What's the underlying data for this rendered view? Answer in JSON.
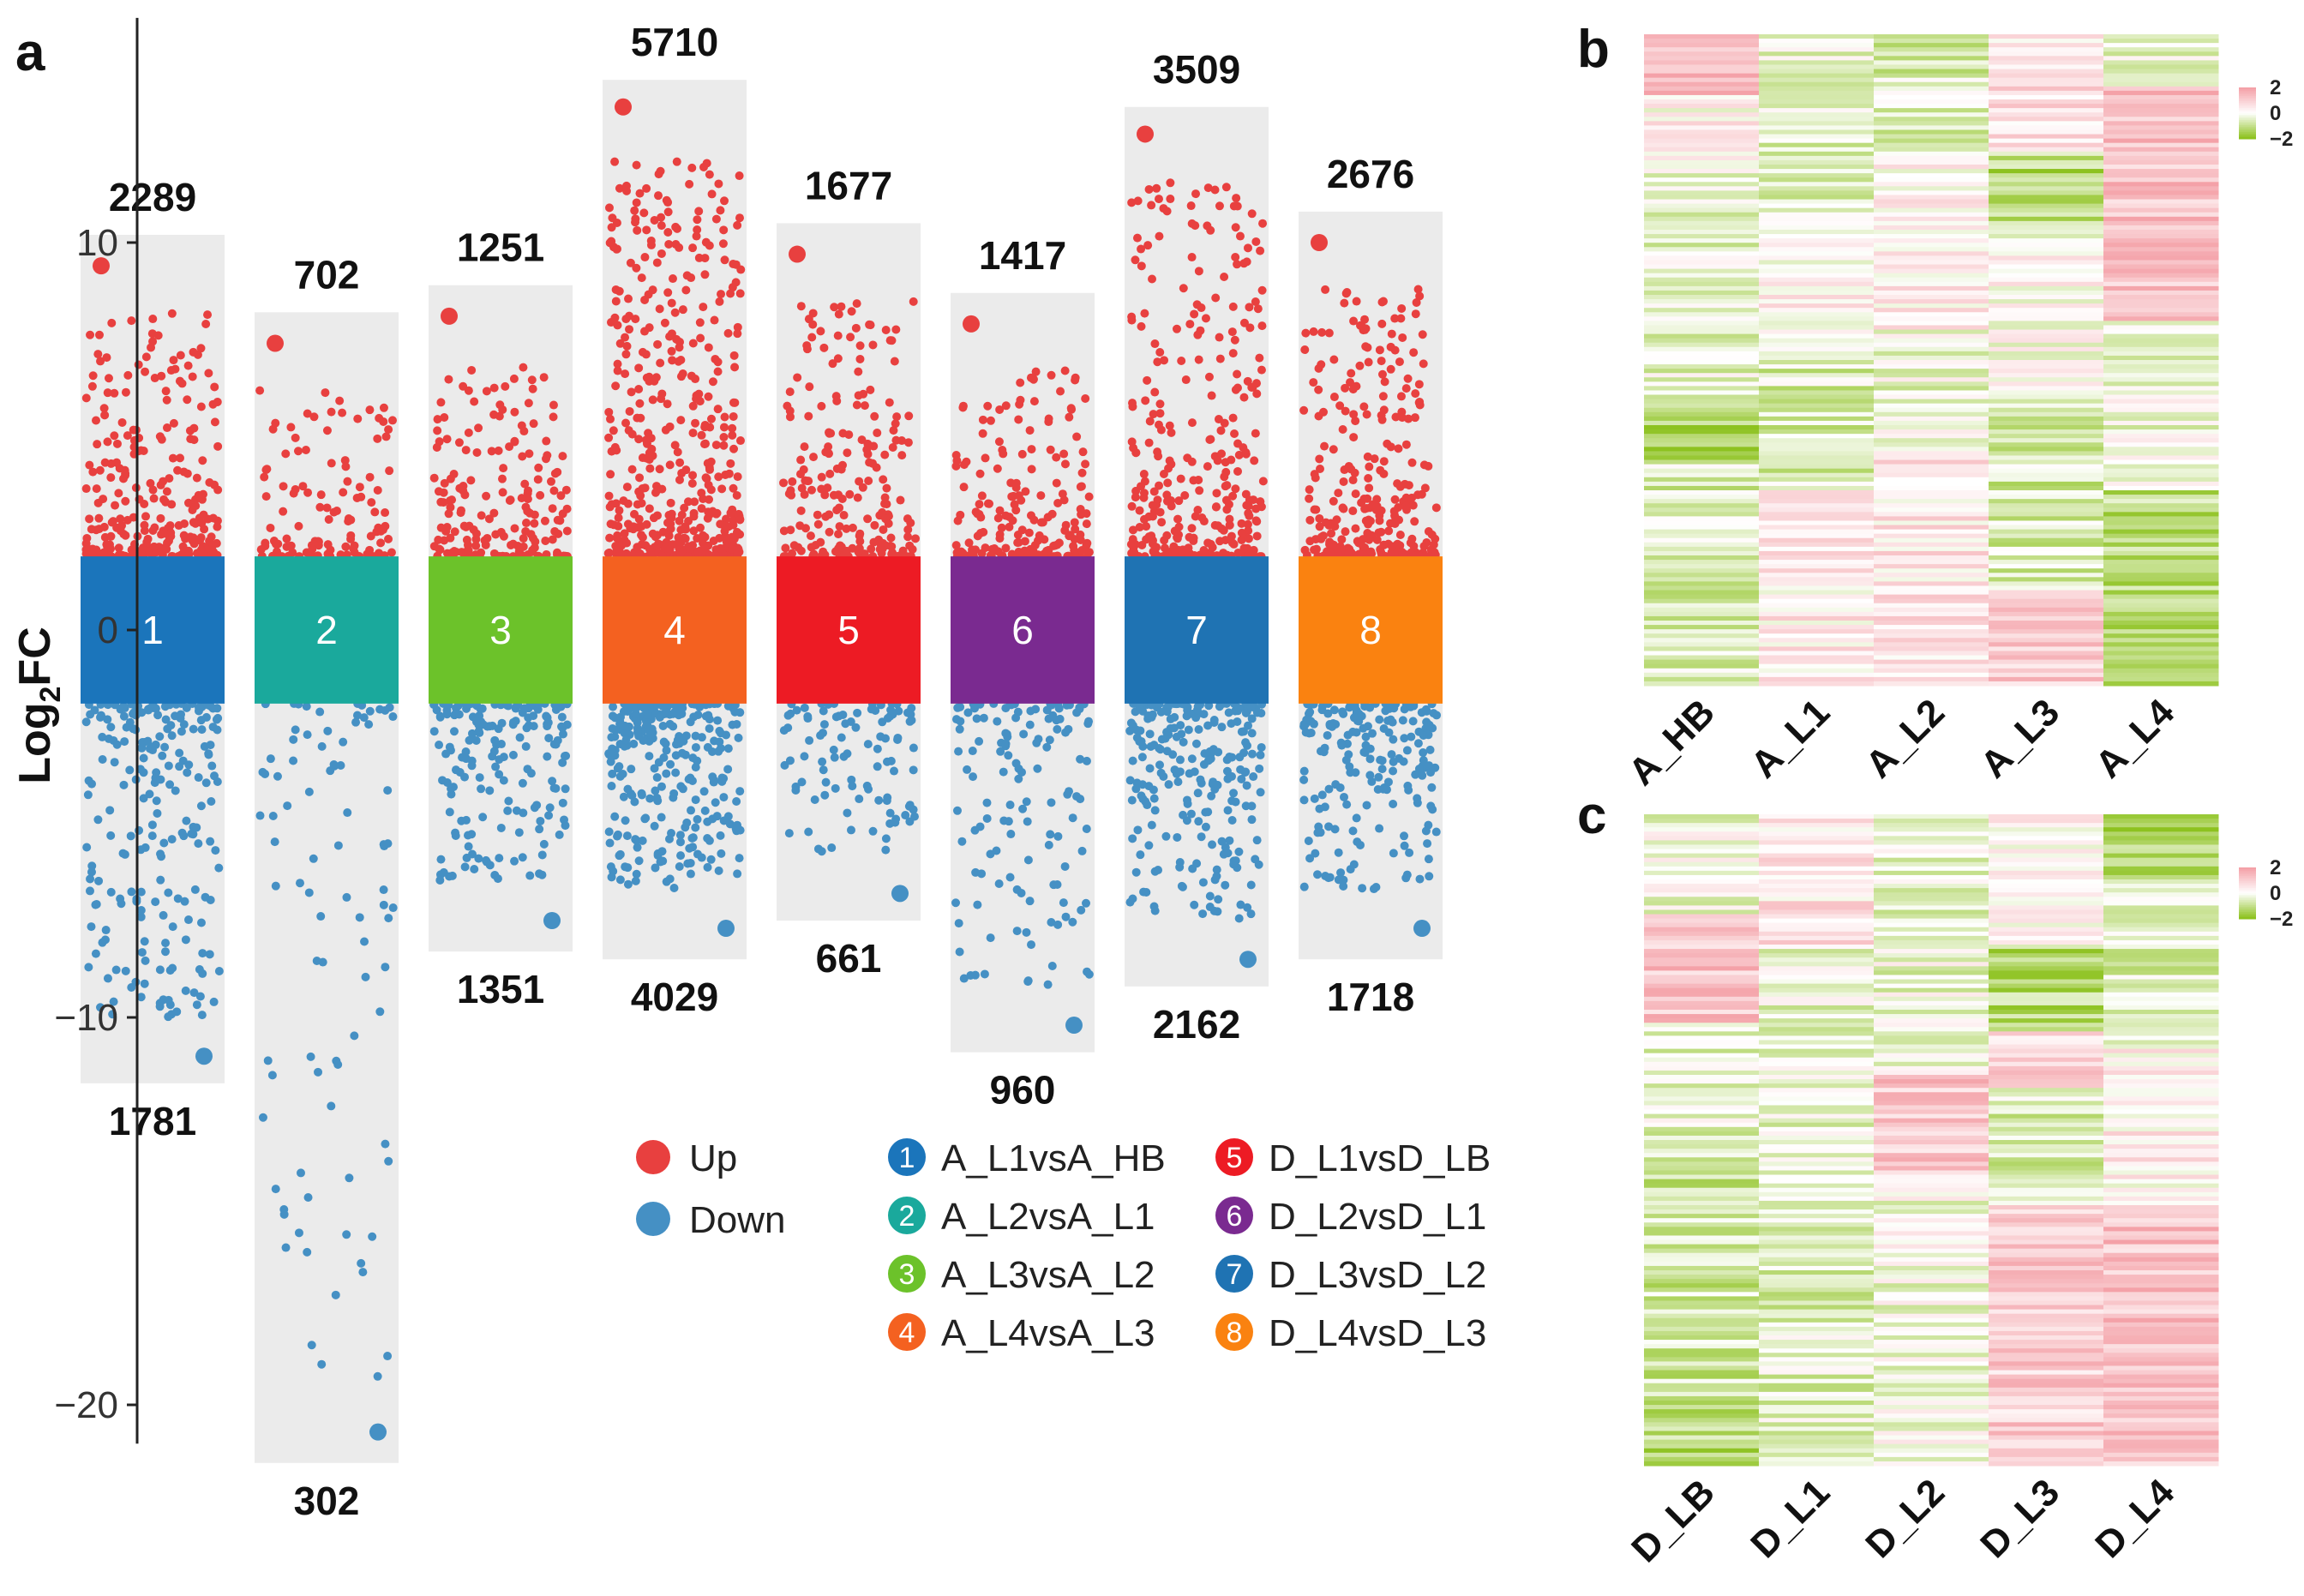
{
  "panels": {
    "a": "a",
    "b": "b",
    "c": "c"
  },
  "chart_data": [
    {
      "type": "scatter",
      "panel": "a",
      "ylabel": "Log2FC",
      "ylabel_main": "Log",
      "ylabel_sub": "2",
      "ylabel_suffix": "FC",
      "ylim": [
        -21,
        15
      ],
      "yticks": [
        10,
        0,
        -10,
        -20
      ],
      "ytick_labels": [
        "10",
        "0",
        "−10",
        "−20"
      ],
      "threshold": 1.9,
      "colors": {
        "up": "#e8403f",
        "down": "#4590c4",
        "box": "#ebebeb"
      },
      "legend_updown": [
        {
          "key": "up",
          "label": "Up"
        },
        {
          "key": "down",
          "label": "Down"
        }
      ],
      "groups": [
        {
          "id": "1",
          "comparison": "A_L1vsA_HB",
          "color": "#1b75bb",
          "up_count": "2289",
          "down_count": "1781",
          "box_top": 10.2,
          "box_bottom": -11.7,
          "max_up": 9.4,
          "min_down": -11.0,
          "up_density": 1.0,
          "down_density": 1.0
        },
        {
          "id": "2",
          "comparison": "A_L2vsA_L1",
          "color": "#1aa99c",
          "up_count": "702",
          "down_count": "302",
          "box_top": 8.2,
          "box_bottom": -21.5,
          "max_up": 7.4,
          "min_down": -20.7,
          "up_density": 0.45,
          "down_density": 0.4
        },
        {
          "id": "3",
          "comparison": "A_L3vsA_L2",
          "color": "#6cc22a",
          "up_count": "1251",
          "down_count": "1351",
          "box_top": 8.9,
          "box_bottom": -8.3,
          "max_up": 8.1,
          "min_down": -7.5,
          "up_density": 0.7,
          "down_density": 0.85
        },
        {
          "id": "4",
          "comparison": "A_L4vsA_L3",
          "color": "#f46120",
          "up_count": "5710",
          "down_count": "4029",
          "box_top": 14.2,
          "box_bottom": -8.5,
          "max_up": 13.5,
          "min_down": -7.7,
          "up_density": 1.8,
          "down_density": 1.3
        },
        {
          "id": "5",
          "comparison": "D_L1vsD_LB",
          "color": "#ed1b24",
          "up_count": "1677",
          "down_count": "661",
          "box_top": 10.5,
          "box_bottom": -7.5,
          "max_up": 9.7,
          "min_down": -6.8,
          "up_density": 0.8,
          "down_density": 0.45
        },
        {
          "id": "6",
          "comparison": "D_L2vsD_L1",
          "color": "#7a2a90",
          "up_count": "1417",
          "down_count": "960",
          "box_top": 8.7,
          "box_bottom": -10.9,
          "max_up": 7.9,
          "min_down": -10.2,
          "up_density": 0.7,
          "down_density": 0.6
        },
        {
          "id": "7",
          "comparison": "D_L3vsD_L2",
          "color": "#1f73b3",
          "up_count": "3509",
          "down_count": "2162",
          "box_top": 13.5,
          "box_bottom": -9.2,
          "max_up": 12.8,
          "min_down": -8.5,
          "up_density": 1.2,
          "down_density": 1.1
        },
        {
          "id": "8",
          "comparison": "D_L4vsD_L3",
          "color": "#fa8210",
          "up_count": "2676",
          "down_count": "1718",
          "box_top": 10.8,
          "box_bottom": -8.5,
          "max_up": 10.0,
          "min_down": -7.7,
          "up_density": 1.1,
          "down_density": 0.9
        }
      ]
    },
    {
      "type": "heatmap",
      "panel": "b",
      "columns": [
        "A_HB",
        "A_L1",
        "A_L2",
        "A_L3",
        "A_L4"
      ],
      "color_scale": {
        "min": -2,
        "max": 2,
        "low": "#8dc21f",
        "mid": "#ffffff",
        "high": "#f4a1a8"
      },
      "scale_labels": [
        "2",
        "0",
        "−2"
      ]
    },
    {
      "type": "heatmap",
      "panel": "c",
      "columns": [
        "D_LB",
        "D_L1",
        "D_L2",
        "D_L3",
        "D_L4"
      ],
      "color_scale": {
        "min": -2,
        "max": 2,
        "low": "#8dc21f",
        "mid": "#ffffff",
        "high": "#f4a1a8"
      },
      "scale_labels": [
        "2",
        "0",
        "−2"
      ]
    }
  ]
}
